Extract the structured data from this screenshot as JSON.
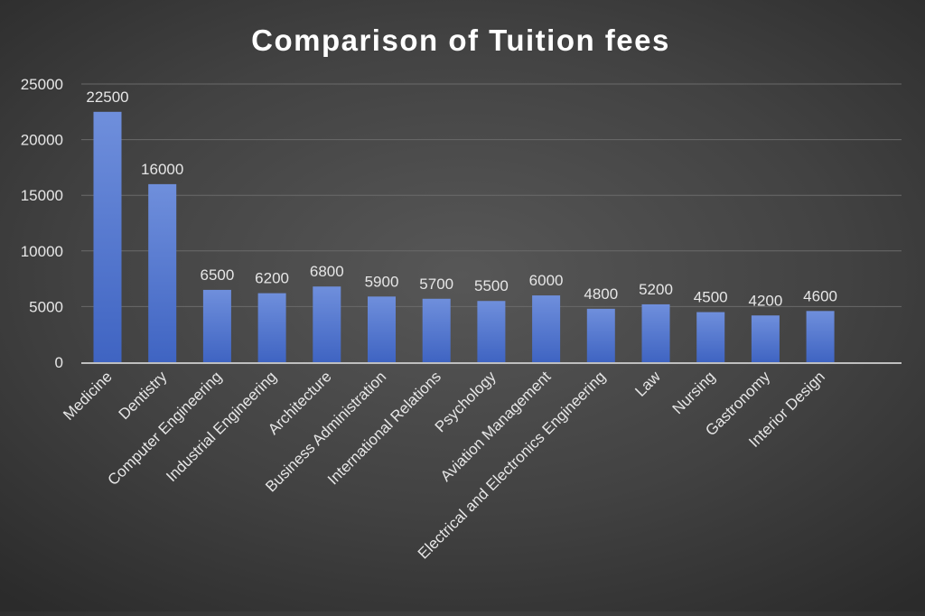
{
  "chart_data": {
    "type": "bar",
    "title": "Comparison of Tuition fees",
    "categories": [
      "Medicine",
      "Dentistry",
      "Computer Engineering",
      "Industrial Engineering",
      "Architecture",
      "Business Administration",
      "International Relations",
      "Psychology",
      "Aviation Management",
      "Electrical and Electronics Engineering",
      "Law",
      "Nursing",
      "Gastronomy",
      "Interior Design"
    ],
    "values": [
      22500,
      16000,
      6500,
      6200,
      6800,
      5900,
      5700,
      5500,
      6000,
      4800,
      5200,
      4500,
      4200,
      4600
    ],
    "ylim": [
      0,
      25000
    ],
    "yticks": [
      0,
      5000,
      10000,
      15000,
      20000,
      25000
    ],
    "grid": true,
    "legend": "none",
    "data_labels": true,
    "colors": {
      "bar_top": "#6f8fdc",
      "bar_bottom": "#3f64c2",
      "text": "#e6e6e6",
      "title": "#ffffff",
      "grid": "#6a6a6a",
      "axis": "#bfbfbf"
    }
  }
}
